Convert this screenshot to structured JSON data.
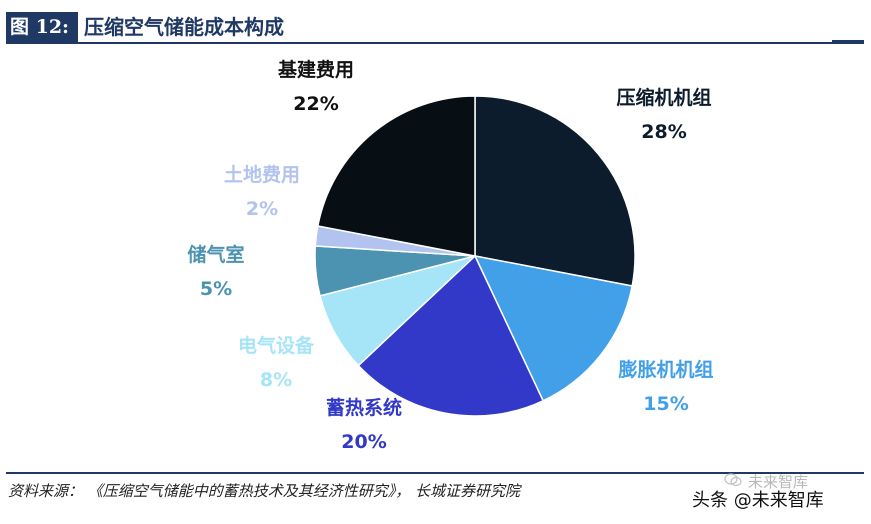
{
  "header": {
    "figure_label": "图 12:",
    "title": "压缩空气储能成本构成"
  },
  "chart_data": {
    "type": "pie",
    "title": "压缩空气储能成本构成",
    "slices": [
      {
        "label": "压缩机机组",
        "value": 28,
        "value_label": "28%",
        "color": "#0d1c2c",
        "label_color": "#0d1c2c"
      },
      {
        "label": "膨胀机机组",
        "value": 15,
        "value_label": "15%",
        "color": "#42a0e8",
        "label_color": "#42a0e8"
      },
      {
        "label": "蓄热系统",
        "value": 20,
        "value_label": "20%",
        "color": "#3238c8",
        "label_color": "#3238c8"
      },
      {
        "label": "电气设备",
        "value": 8,
        "value_label": "8%",
        "color": "#a6e4f8",
        "label_color": "#a6e4f8"
      },
      {
        "label": "储气室",
        "value": 5,
        "value_label": "5%",
        "color": "#4c93b2",
        "label_color": "#4c93b2"
      },
      {
        "label": "土地费用",
        "value": 2,
        "value_label": "2%",
        "color": "#b1c3ee",
        "label_color": "#b1c3ee"
      },
      {
        "label": "基建费用",
        "value": 22,
        "value_label": "22%",
        "color": "#070e14",
        "label_color": "#111111"
      }
    ],
    "start_angle": "12 o'clock",
    "direction": "clockwise",
    "legend": "none"
  },
  "footer": {
    "source": "资料来源： 《压缩空气储能中的蓄热技术及其经济性研究》， 长城证券研究院",
    "watermark": "头条 @未来智库",
    "watermark_faint": "未来智库"
  }
}
